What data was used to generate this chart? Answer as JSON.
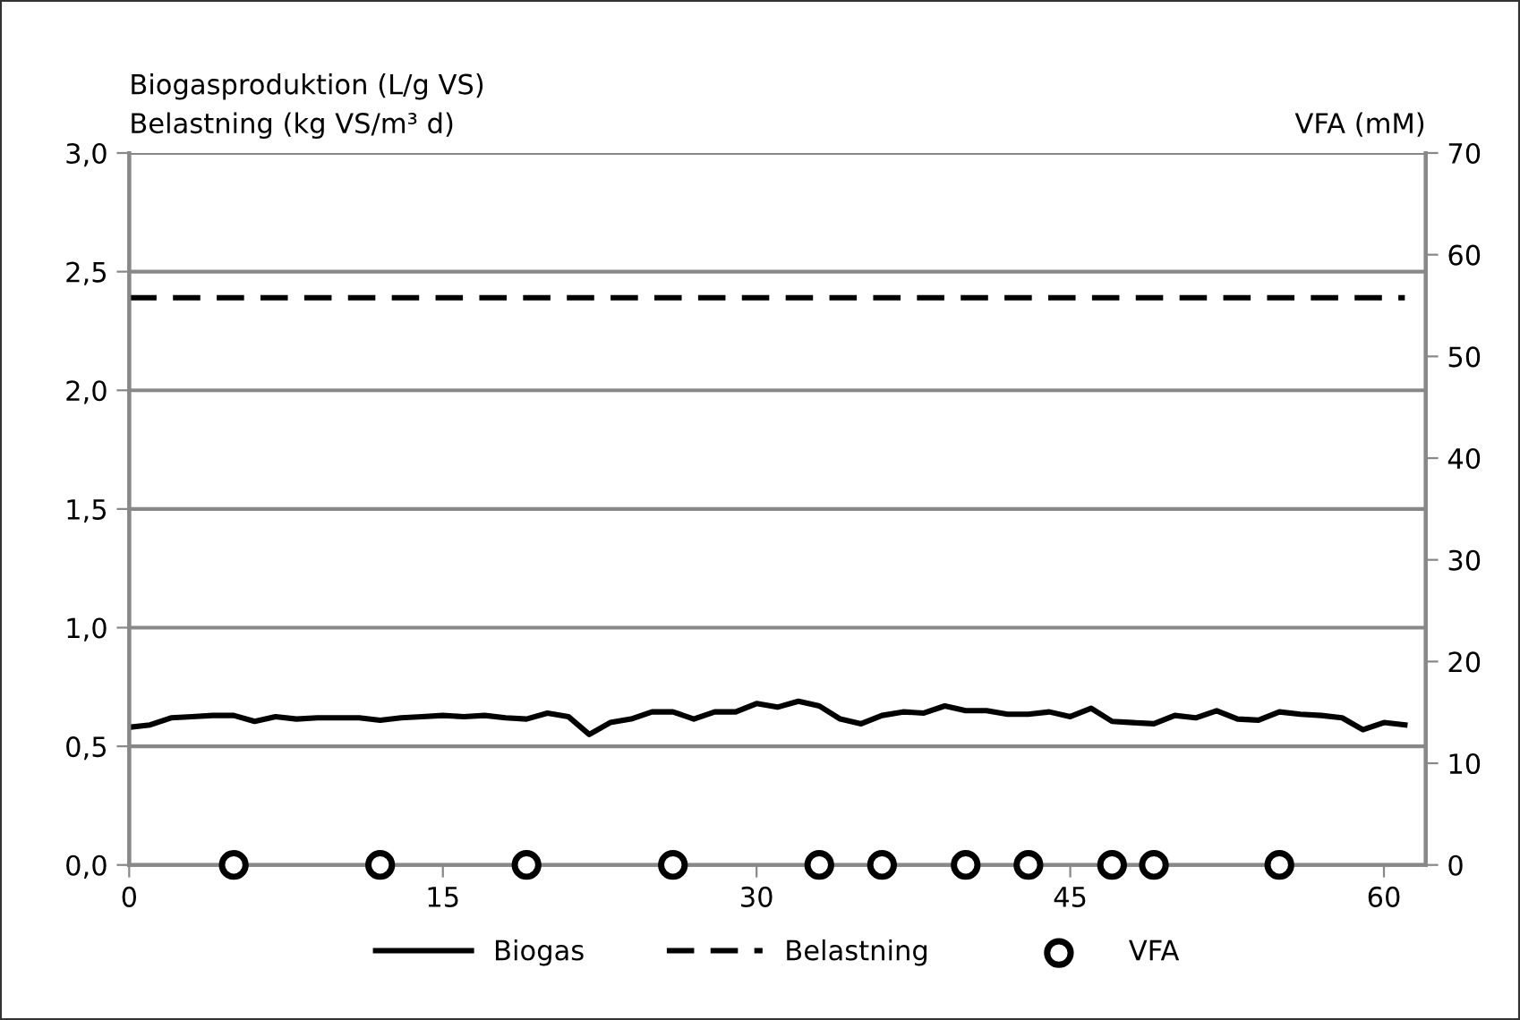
{
  "chart_data": {
    "type": "line",
    "ylabel": "Biogasproduktion (L/g VS)\nBelastning (kg VS/m³ d)",
    "y2label": "VFA (mM)",
    "series": [
      {
        "name": "Biogas",
        "color": "#000000",
        "line_style": "solid",
        "x": [
          0,
          1,
          2,
          3,
          4,
          5,
          6,
          7,
          8,
          9,
          10,
          11,
          12,
          13,
          14,
          15,
          16,
          17,
          18,
          19,
          20,
          21,
          22,
          23,
          24,
          25,
          26,
          27,
          28,
          29,
          30,
          31,
          32,
          33,
          34,
          35,
          36,
          37,
          38,
          39,
          40,
          41,
          42,
          43,
          44,
          45,
          46,
          47,
          48,
          49,
          50,
          51,
          52,
          53,
          54,
          55,
          56,
          57,
          58,
          59,
          60,
          61
        ],
        "values": [
          0.58,
          0.59,
          0.62,
          0.625,
          0.63,
          0.63,
          0.605,
          0.625,
          0.615,
          0.62,
          0.62,
          0.62,
          0.61,
          0.62,
          0.625,
          0.63,
          0.625,
          0.63,
          0.62,
          0.615,
          0.64,
          0.625,
          0.55,
          0.6,
          0.615,
          0.645,
          0.645,
          0.615,
          0.645,
          0.645,
          0.68,
          0.665,
          0.69,
          0.67,
          0.615,
          0.595,
          0.63,
          0.645,
          0.64,
          0.67,
          0.65,
          0.65,
          0.635,
          0.635,
          0.645,
          0.625,
          0.66,
          0.605,
          0.6,
          0.595,
          0.63,
          0.62,
          0.65,
          0.615,
          0.61,
          0.645,
          0.635,
          0.63,
          0.62,
          0.57,
          0.6,
          0.59
        ]
      },
      {
        "name": "Belastning",
        "color": "#000000",
        "line_style": "dashed",
        "x": [
          0,
          61
        ],
        "values": [
          2.39,
          2.39
        ]
      },
      {
        "name": "VFA",
        "type": "scatter",
        "axis": "y2",
        "marker": "circle",
        "color": "#000000",
        "x": [
          5,
          12,
          19,
          26,
          33,
          36,
          40,
          43,
          47,
          49,
          55
        ],
        "values": [
          0,
          0,
          0,
          0,
          0,
          0,
          0,
          0,
          0,
          0,
          0
        ]
      }
    ],
    "xlim": [
      0,
      62
    ],
    "xticks": [
      0,
      15,
      30,
      45,
      60
    ],
    "ylim": [
      0,
      3
    ],
    "yticks": [
      {
        "value": 0,
        "label": "0,0"
      },
      {
        "value": 0.5,
        "label": "0,5"
      },
      {
        "value": 1,
        "label": "1,0"
      },
      {
        "value": 1.5,
        "label": "1,5"
      },
      {
        "value": 2,
        "label": "2,0"
      },
      {
        "value": 2.5,
        "label": "2,5"
      },
      {
        "value": 3,
        "label": "3,0"
      }
    ],
    "y2lim": [
      0,
      70
    ],
    "y2ticks": [
      0,
      10,
      20,
      30,
      40,
      50,
      60,
      70
    ],
    "grid": "y",
    "legend": "bottom"
  }
}
